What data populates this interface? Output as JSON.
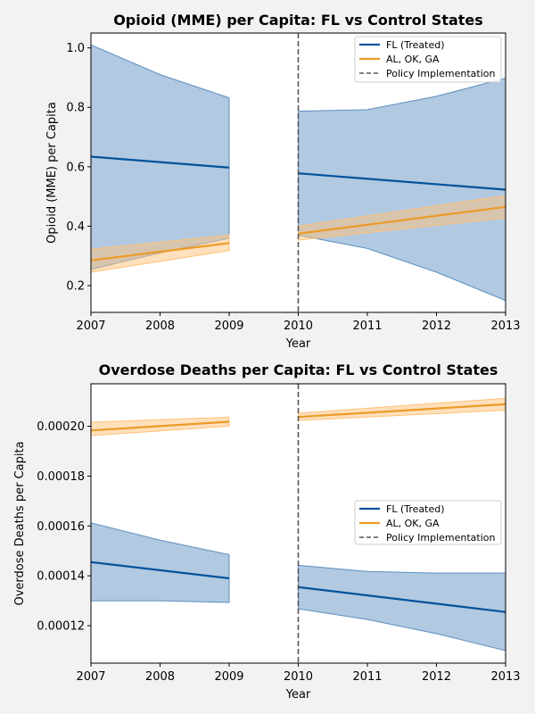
{
  "chart_data": [
    {
      "type": "line",
      "title": "Opioid (MME) per Capita: FL vs Control States",
      "xlabel": "Year",
      "ylabel": "Opioid (MME) per Capita",
      "xlim": [
        2007,
        2013
      ],
      "ylim": [
        0.11,
        1.05
      ],
      "xticks": [
        "2007",
        "2008",
        "2009",
        "2010",
        "2011",
        "2012",
        "2013"
      ],
      "yticks": [
        "0.2",
        "0.4",
        "0.6",
        "0.8",
        "1.0"
      ],
      "ytick_values": [
        0.2,
        0.4,
        0.6,
        0.8,
        1.0
      ],
      "grid": false,
      "legend_position": "top-right",
      "policy_line": 2010,
      "legend": [
        "FL (Treated)",
        "AL, OK, GA",
        "Policy Implementation"
      ],
      "series": [
        {
          "name": "FL (Treated)",
          "color": "#00529b",
          "band_color": "#5c8fc0",
          "segments": [
            {
              "x": [
                2007,
                2009
              ],
              "y": [
                0.634,
                0.597
              ],
              "lower": [
                0.255,
                0.36
              ],
              "upper": [
                1.01,
                0.832
              ],
              "band_x": [
                2007,
                2008,
                2009
              ],
              "band_lower": [
                0.255,
                0.31,
                0.36
              ],
              "band_upper": [
                1.01,
                0.91,
                0.832
              ]
            },
            {
              "x": [
                2010,
                2013
              ],
              "y": [
                0.578,
                0.523
              ],
              "band_x": [
                2010,
                2011,
                2012,
                2013
              ],
              "band_lower": [
                0.37,
                0.325,
                0.245,
                0.15
              ],
              "band_upper": [
                0.787,
                0.792,
                0.837,
                0.898
              ]
            }
          ]
        },
        {
          "name": "AL, OK, GA",
          "color": "#ec9b28",
          "band_color": "#ffc27a",
          "segments": [
            {
              "x": [
                2007,
                2009
              ],
              "y": [
                0.285,
                0.343
              ],
              "band_x": [
                2007,
                2009
              ],
              "band_lower": [
                0.245,
                0.318
              ],
              "band_upper": [
                0.323,
                0.37
              ]
            },
            {
              "x": [
                2010,
                2013
              ],
              "y": [
                0.375,
                0.465
              ],
              "band_x": [
                2010,
                2013
              ],
              "band_lower": [
                0.353,
                0.428
              ],
              "band_upper": [
                0.4,
                0.503
              ]
            }
          ]
        }
      ]
    },
    {
      "type": "line",
      "title": "Overdose Deaths per Capita: FL vs Control States",
      "xlabel": "Year",
      "ylabel": "Overdose Deaths per Capita",
      "xlim": [
        2007,
        2013
      ],
      "ylim": [
        0.000105,
        0.000217
      ],
      "xticks": [
        "2007",
        "2008",
        "2009",
        "2010",
        "2011",
        "2012",
        "2013"
      ],
      "yticks": [
        "0.00012",
        "0.00014",
        "0.00016",
        "0.00018",
        "0.00020"
      ],
      "ytick_values": [
        0.00012,
        0.00014,
        0.00016,
        0.00018,
        0.0002
      ],
      "grid": false,
      "legend_position": "center-right",
      "policy_line": 2010,
      "legend": [
        "FL (Treated)",
        "AL, OK, GA",
        "Policy Implementation"
      ],
      "series": [
        {
          "name": "FL (Treated)",
          "color": "#00529b",
          "band_color": "#5c8fc0",
          "segments": [
            {
              "x": [
                2007,
                2009
              ],
              "y": [
                0.0001455,
                0.000139
              ],
              "band_x": [
                2007,
                2008,
                2009
              ],
              "band_lower": [
                0.00013,
                0.00013,
                0.0001293
              ],
              "band_upper": [
                0.0001612,
                0.0001543,
                0.0001485
              ]
            },
            {
              "x": [
                2010,
                2013
              ],
              "y": [
                0.0001355,
                0.0001255
              ],
              "band_x": [
                2010,
                2011,
                2012,
                2013
              ],
              "band_lower": [
                0.0001268,
                0.0001225,
                0.0001168,
                0.00011
              ],
              "band_upper": [
                0.0001442,
                0.0001418,
                0.0001411,
                0.0001411
              ]
            }
          ]
        },
        {
          "name": "AL, OK, GA",
          "color": "#ec9b28",
          "band_color": "#ffc27a",
          "segments": [
            {
              "x": [
                2007,
                2009
              ],
              "y": [
                0.0001983,
                0.0002018
              ],
              "band_x": [
                2007,
                2009
              ],
              "band_lower": [
                0.0001962,
                0.0002
              ],
              "band_upper": [
                0.0002016,
                0.0002036
              ]
            },
            {
              "x": [
                2010,
                2013
              ],
              "y": [
                0.0002037,
                0.0002088
              ],
              "band_x": [
                2010,
                2013
              ],
              "band_lower": [
                0.0002023,
                0.0002064
              ],
              "band_upper": [
                0.0002052,
                0.0002112
              ]
            }
          ]
        }
      ]
    }
  ]
}
